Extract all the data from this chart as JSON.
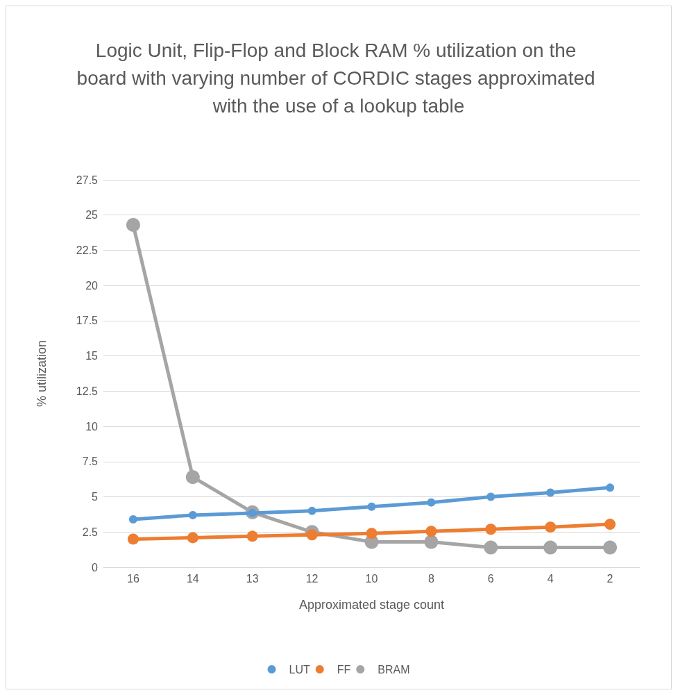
{
  "chart_data": {
    "type": "line",
    "title": "Logic Unit, Flip-Flop and Block RAM % utilization on the board with varying number of CORDIC stages approximated with the use of a lookup table",
    "xlabel": "Approximated stage count",
    "ylabel": "% utilization",
    "categories": [
      "16",
      "14",
      "13",
      "12",
      "10",
      "8",
      "6",
      "4",
      "2"
    ],
    "series": [
      {
        "name": "LUT",
        "color": "#5b9bd5",
        "values": [
          3.4,
          3.7,
          3.85,
          4.0,
          4.3,
          4.6,
          5.0,
          5.3,
          5.65
        ]
      },
      {
        "name": "FF",
        "color": "#ed7d31",
        "values": [
          2.0,
          2.1,
          2.2,
          2.3,
          2.4,
          2.55,
          2.7,
          2.85,
          3.05
        ]
      },
      {
        "name": "BRAM",
        "color": "#a5a5a5",
        "values": [
          24.3,
          6.4,
          3.9,
          2.5,
          1.8,
          1.8,
          1.4,
          1.4,
          1.4
        ]
      }
    ],
    "ylim": [
      0,
      27.5
    ],
    "yticks": [
      0,
      2.5,
      5,
      7.5,
      10,
      12.5,
      15,
      17.5,
      20,
      22.5,
      25,
      27.5
    ],
    "grid": "y",
    "legend": "bottom",
    "marker": "circle",
    "line_style": "solid"
  }
}
